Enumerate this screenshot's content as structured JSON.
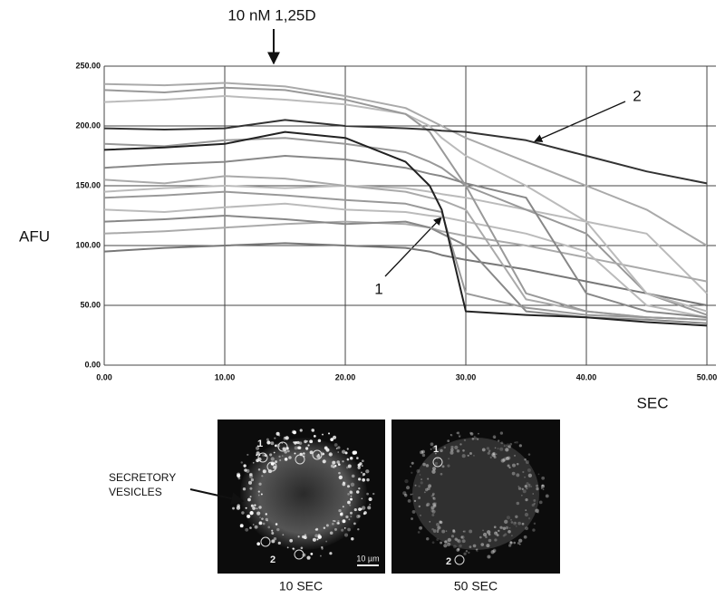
{
  "chart_data": {
    "type": "line",
    "annotations": [
      "10 nM 1,25D",
      "1",
      "2"
    ],
    "xlabel": "SEC",
    "ylabel": "AFU",
    "x": [
      0,
      5,
      10,
      15,
      20,
      25,
      27,
      28,
      30,
      35,
      40,
      45,
      50
    ],
    "xlim": [
      0,
      50.75
    ],
    "ylim": [
      0,
      250
    ],
    "xticks": [
      {
        "value": 0,
        "label": "0.00"
      },
      {
        "value": 10,
        "label": "10.00"
      },
      {
        "value": 20,
        "label": "20.00"
      },
      {
        "value": 30,
        "label": "30.00"
      },
      {
        "value": 40,
        "label": "40.00"
      },
      {
        "value": 50,
        "label": "50.00"
      }
    ],
    "yticks": [
      {
        "value": 0,
        "label": "0.00"
      },
      {
        "value": 50,
        "label": "50.00"
      },
      {
        "value": 100,
        "label": "100.00"
      },
      {
        "value": 150,
        "label": "150.00"
      },
      {
        "value": 200,
        "label": "200.00"
      },
      {
        "value": 250,
        "label": "250.00"
      }
    ],
    "grid": true,
    "series": [
      {
        "color": "#222222",
        "values": [
          180,
          182,
          185,
          195,
          190,
          170,
          150,
          130,
          45,
          42,
          40,
          36,
          33
        ]
      },
      {
        "color": "#333333",
        "values": [
          198,
          197,
          198,
          205,
          200,
          198,
          197,
          196,
          195,
          188,
          175,
          162,
          152
        ]
      },
      {
        "color": "#aaaaaa",
        "values": [
          235,
          234,
          236,
          233,
          225,
          215,
          205,
          200,
          190,
          170,
          150,
          130,
          100
        ]
      },
      {
        "color": "#999999",
        "values": [
          230,
          228,
          232,
          230,
          222,
          210,
          195,
          180,
          150,
          60,
          45,
          40,
          38
        ]
      },
      {
        "color": "#bbbbbb",
        "values": [
          220,
          222,
          225,
          222,
          218,
          210,
          200,
          190,
          175,
          150,
          120,
          60,
          45
        ]
      },
      {
        "color": "#888888",
        "values": [
          165,
          168,
          170,
          175,
          172,
          165,
          160,
          158,
          152,
          140,
          60,
          45,
          40
        ]
      },
      {
        "color": "#aaaaaa",
        "values": [
          155,
          152,
          158,
          156,
          150,
          145,
          140,
          138,
          130,
          55,
          45,
          40,
          38
        ]
      },
      {
        "color": "#999999",
        "values": [
          140,
          142,
          145,
          142,
          138,
          135,
          130,
          128,
          60,
          48,
          42,
          40,
          38
        ]
      },
      {
        "color": "#bbbbbb",
        "values": [
          130,
          128,
          132,
          135,
          130,
          128,
          125,
          124,
          120,
          110,
          95,
          50,
          40
        ]
      },
      {
        "color": "#888888",
        "values": [
          120,
          122,
          125,
          122,
          118,
          120,
          115,
          110,
          100,
          45,
          40,
          38,
          35
        ]
      },
      {
        "color": "#aaaaaa",
        "values": [
          110,
          112,
          115,
          118,
          120,
          118,
          115,
          112,
          108,
          100,
          90,
          80,
          70
        ]
      },
      {
        "color": "#777777",
        "values": [
          95,
          98,
          100,
          102,
          100,
          98,
          95,
          92,
          88,
          80,
          70,
          60,
          50
        ]
      },
      {
        "color": "#999999",
        "values": [
          185,
          183,
          188,
          190,
          185,
          178,
          170,
          165,
          150,
          130,
          110,
          60,
          42
        ]
      },
      {
        "color": "#bbbbbb",
        "values": [
          145,
          148,
          150,
          148,
          150,
          148,
          145,
          143,
          140,
          130,
          120,
          110,
          60
        ]
      }
    ]
  },
  "images": {
    "vesicle_label": [
      "SECRETORY",
      "VESICLES"
    ],
    "panels": [
      {
        "caption": "10 SEC",
        "marker_1": "1",
        "marker_2": "2",
        "scale": "10 µm"
      },
      {
        "caption": "50 SEC",
        "marker_1": "1",
        "marker_2": "2"
      }
    ]
  }
}
